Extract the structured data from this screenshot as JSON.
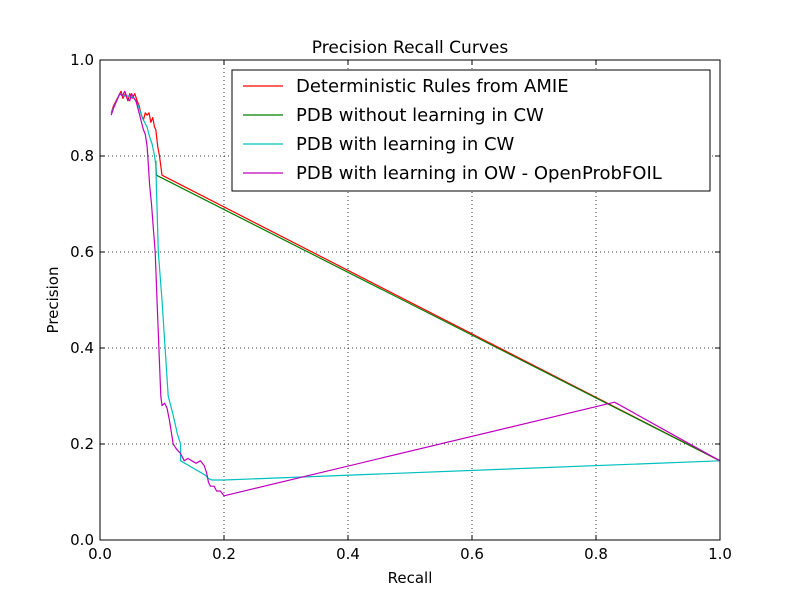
{
  "chart_data": {
    "type": "line",
    "title": "Precision Recall Curves",
    "xlabel": "Recall",
    "ylabel": "Precision",
    "xlim": [
      0,
      1
    ],
    "ylim": [
      0,
      1
    ],
    "xticks": [
      "0.0",
      "0.2",
      "0.4",
      "0.6",
      "0.8",
      "1.0"
    ],
    "yticks": [
      "0.0",
      "0.2",
      "0.4",
      "0.6",
      "0.8",
      "1.0"
    ],
    "grid": true,
    "legend_position": "top-right",
    "series": [
      {
        "name": "Deterministic Rules from AMIE",
        "color": "#ff0000",
        "points": [
          [
            0.018,
            0.89
          ],
          [
            0.022,
            0.905
          ],
          [
            0.026,
            0.915
          ],
          [
            0.03,
            0.925
          ],
          [
            0.034,
            0.935
          ],
          [
            0.037,
            0.92
          ],
          [
            0.041,
            0.93
          ],
          [
            0.045,
            0.915
          ],
          [
            0.048,
            0.93
          ],
          [
            0.052,
            0.92
          ],
          [
            0.056,
            0.93
          ],
          [
            0.06,
            0.915
          ],
          [
            0.063,
            0.905
          ],
          [
            0.067,
            0.885
          ],
          [
            0.07,
            0.875
          ],
          [
            0.073,
            0.89
          ],
          [
            0.076,
            0.885
          ],
          [
            0.079,
            0.89
          ],
          [
            0.082,
            0.87
          ],
          [
            0.085,
            0.88
          ],
          [
            0.088,
            0.86
          ],
          [
            0.09,
            0.855
          ],
          [
            0.093,
            0.82
          ],
          [
            0.096,
            0.8
          ],
          [
            0.1,
            0.76
          ],
          [
            1.0,
            0.165
          ]
        ]
      },
      {
        "name": "PDB without learning in CW",
        "color": "#008000",
        "points": [
          [
            0.09,
            0.79
          ],
          [
            0.091,
            0.76
          ],
          [
            1.0,
            0.165
          ]
        ]
      },
      {
        "name": "PDB with learning in CW",
        "color": "#00bfbf",
        "points": [
          [
            0.018,
            0.89
          ],
          [
            0.025,
            0.91
          ],
          [
            0.032,
            0.93
          ],
          [
            0.04,
            0.925
          ],
          [
            0.048,
            0.925
          ],
          [
            0.055,
            0.92
          ],
          [
            0.062,
            0.905
          ],
          [
            0.068,
            0.88
          ],
          [
            0.072,
            0.87
          ],
          [
            0.076,
            0.86
          ],
          [
            0.08,
            0.84
          ],
          [
            0.084,
            0.825
          ],
          [
            0.088,
            0.8
          ],
          [
            0.09,
            0.78
          ],
          [
            0.094,
            0.6
          ],
          [
            0.1,
            0.5
          ],
          [
            0.105,
            0.4
          ],
          [
            0.11,
            0.3
          ],
          [
            0.118,
            0.26
          ],
          [
            0.125,
            0.22
          ],
          [
            0.13,
            0.2
          ],
          [
            0.13,
            0.165
          ],
          [
            0.15,
            0.15
          ],
          [
            0.17,
            0.135
          ],
          [
            0.175,
            0.128
          ],
          [
            0.18,
            0.125
          ],
          [
            0.2,
            0.125
          ],
          [
            1.0,
            0.165
          ]
        ]
      },
      {
        "name": "PDB with learning in OW - OpenProbFOIL",
        "color": "#bf00bf",
        "points": [
          [
            0.018,
            0.885
          ],
          [
            0.022,
            0.9
          ],
          [
            0.027,
            0.915
          ],
          [
            0.032,
            0.93
          ],
          [
            0.036,
            0.925
          ],
          [
            0.04,
            0.935
          ],
          [
            0.044,
            0.92
          ],
          [
            0.048,
            0.915
          ],
          [
            0.051,
            0.93
          ],
          [
            0.055,
            0.92
          ],
          [
            0.058,
            0.915
          ],
          [
            0.061,
            0.9
          ],
          [
            0.064,
            0.885
          ],
          [
            0.067,
            0.87
          ],
          [
            0.07,
            0.855
          ],
          [
            0.073,
            0.845
          ],
          [
            0.076,
            0.82
          ],
          [
            0.078,
            0.78
          ],
          [
            0.08,
            0.74
          ],
          [
            0.083,
            0.7
          ],
          [
            0.086,
            0.65
          ],
          [
            0.089,
            0.6
          ],
          [
            0.092,
            0.5
          ],
          [
            0.095,
            0.4
          ],
          [
            0.098,
            0.3
          ],
          [
            0.1,
            0.28
          ],
          [
            0.104,
            0.285
          ],
          [
            0.108,
            0.275
          ],
          [
            0.112,
            0.25
          ],
          [
            0.118,
            0.2
          ],
          [
            0.123,
            0.19
          ],
          [
            0.13,
            0.18
          ],
          [
            0.136,
            0.165
          ],
          [
            0.142,
            0.17
          ],
          [
            0.148,
            0.165
          ],
          [
            0.155,
            0.16
          ],
          [
            0.162,
            0.165
          ],
          [
            0.168,
            0.155
          ],
          [
            0.172,
            0.14
          ],
          [
            0.175,
            0.12
          ],
          [
            0.178,
            0.112
          ],
          [
            0.184,
            0.112
          ],
          [
            0.188,
            0.102
          ],
          [
            0.194,
            0.102
          ],
          [
            0.2,
            0.092
          ],
          [
            0.83,
            0.287
          ],
          [
            1.0,
            0.165
          ]
        ]
      }
    ]
  }
}
